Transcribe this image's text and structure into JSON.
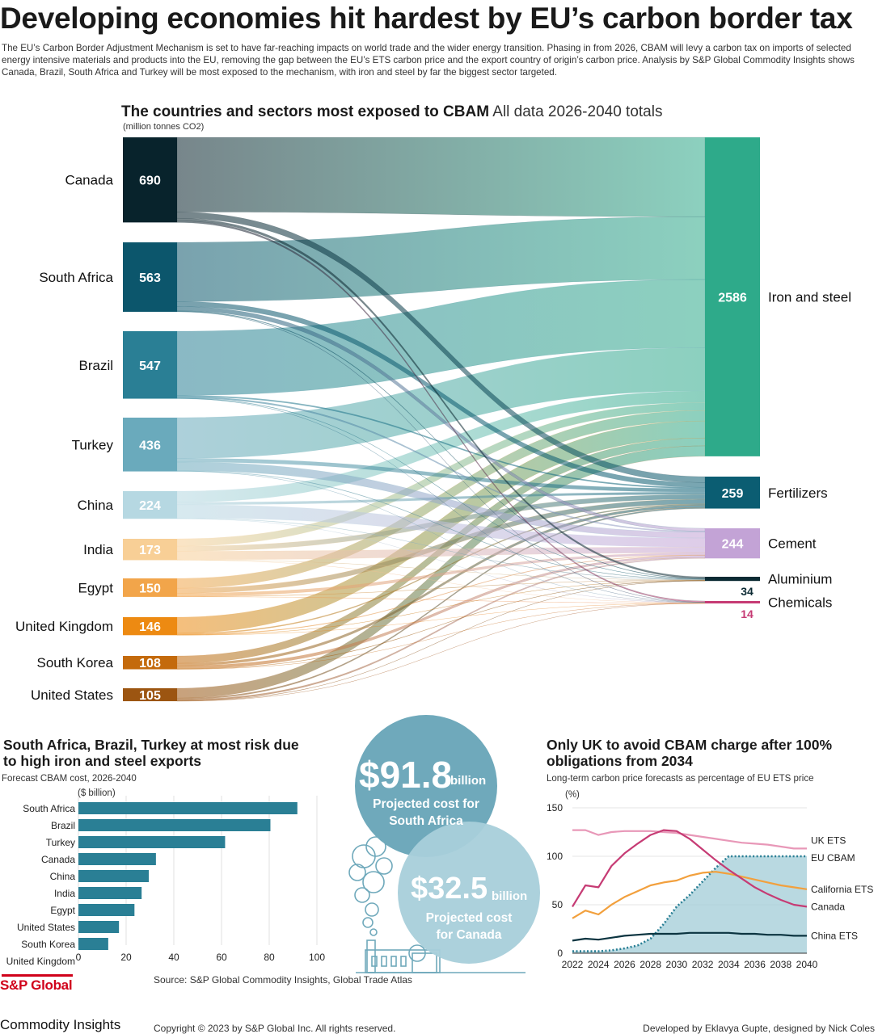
{
  "header": {
    "title": "Developing economies hit hardest by EU’s carbon border tax",
    "intro": "The EU’s Carbon Border Adjustment Mechanism is set to have far-reaching impacts on world trade and the wider energy transition. Phasing in from 2026, CBAM will levy a carbon tax on imports of selected energy intensive materials and products into the EU, removing the gap between the EU’s ETS carbon price and the export country of origin’s carbon price. Analysis by S&P Global Commodity Insights shows Canada, Brazil, South Africa and Turkey will be most exposed to the mechanism, with iron and steel by far the biggest sector targeted."
  },
  "sankey": {
    "title_bold": "The countries and sectors most exposed to CBAM",
    "title_rest": "All data 2026-2040 totals",
    "unit": "(million tonnes CO2)"
  },
  "costs": {
    "south_africa_value": "$91.8",
    "south_africa_suffix": "billion",
    "south_africa_label_1": "Projected cost for",
    "south_africa_label_2": "South Africa",
    "canada_value": "$32.5",
    "canada_suffix": "billion",
    "canada_label_1": "Projected cost",
    "canada_label_2": "for Canada"
  },
  "bar_section": {
    "title": "South Africa, Brazil, Turkey at most risk due to high iron and steel exports",
    "subtitle": "Forecast CBAM cost, 2026-2040",
    "unit": "($ billion)"
  },
  "line_section": {
    "title": "Only UK to avoid CBAM charge after 100% obligations from 2034",
    "subtitle": "Long-term carbon price forecasts as percentage of EU ETS price",
    "unit": "(%)"
  },
  "footer": {
    "source": "Source: S&P Global Commodity Insights, Global Trade Atlas",
    "copyright": "Copyright © 2023 by S&P Global Inc. All rights reserved.",
    "credit": "Developed by Eklavya Gupte,  designed by Nick Coles",
    "logo_line1": "S&P Global",
    "logo_line2": "Commodity Insights"
  },
  "colors": {
    "iron_and_steel": "#2eaa8a",
    "fertilizers": "#0b5d72",
    "cement": "#c3a3d6",
    "aluminium": "#0b2a33",
    "chemicals": "#c63b74",
    "bar": "#2a7f95",
    "bubble_large": "#6fa9bb",
    "bubble_small": "#a8cfda"
  },
  "chart_data": [
    {
      "type": "sankey",
      "title": "The countries and sectors most exposed to CBAM",
      "unit": "million tonnes CO2",
      "sources": [
        {
          "name": "Canada",
          "value": 690,
          "label": "690",
          "color": "#08232c"
        },
        {
          "name": "South Africa",
          "value": 563,
          "label": "563",
          "color": "#0c566c"
        },
        {
          "name": "Brazil",
          "value": 547,
          "label": "547",
          "color": "#2a7f95"
        },
        {
          "name": "Turkey",
          "value": 436,
          "label": "436",
          "color": "#6aaabc"
        },
        {
          "name": "China",
          "value": 224,
          "label": "224",
          "color": "#b6d8e2"
        },
        {
          "name": "India",
          "value": 173,
          "label": "173",
          "color": "#f8cf96"
        },
        {
          "name": "Egypt",
          "value": 150,
          "label": "150",
          "color": "#f2a54a"
        },
        {
          "name": "United Kingdom",
          "value": 146,
          "label": "146",
          "color": "#ed8a12"
        },
        {
          "name": "South Korea",
          "value": 108,
          "label": "108",
          "color": "#c46a0c"
        },
        {
          "name": "United States",
          "value": 105,
          "label": "105",
          "color": "#9c5511"
        }
      ],
      "targets": [
        {
          "name": "Iron and steel",
          "value": 2586,
          "label": "2586",
          "color": "#2eaa8a"
        },
        {
          "name": "Fertilizers",
          "value": 259,
          "label": "259",
          "color": "#0b5d72"
        },
        {
          "name": "Cement",
          "value": 244,
          "label": "244",
          "color": "#c3a3d6"
        },
        {
          "name": "Aluminium",
          "value": 34,
          "label": "34",
          "color": "#0b2a33"
        },
        {
          "name": "Chemicals",
          "value": 14,
          "label": "14",
          "color": "#c63b74"
        }
      ]
    },
    {
      "type": "bar",
      "title": "South Africa, Brazil, Turkey at most risk due to high iron and steel exports",
      "subtitle": "Forecast CBAM cost, 2026-2040",
      "ylabel": "($ billion)",
      "categories": [
        "South Africa",
        "Brazil",
        "Turkey",
        "Canada",
        "China",
        "India",
        "Egypt",
        "United States",
        "South Korea",
        "United Kingdom"
      ],
      "values": [
        91.8,
        80.5,
        61.5,
        32.5,
        29.5,
        26.5,
        23.5,
        17.0,
        12.5,
        0
      ],
      "xlim": [
        0,
        100
      ],
      "xticks": [
        "0",
        "20",
        "40",
        "60",
        "80",
        "100"
      ]
    },
    {
      "type": "line",
      "title": "Only UK to avoid CBAM charge after 100% obligations from 2034",
      "subtitle": "Long-term carbon price forecasts as percentage of EU ETS price",
      "ylabel": "(%)",
      "x": [
        2022,
        2023,
        2024,
        2025,
        2026,
        2027,
        2028,
        2029,
        2030,
        2031,
        2032,
        2033,
        2034,
        2035,
        2036,
        2037,
        2038,
        2039,
        2040
      ],
      "xlim": [
        2022,
        2040
      ],
      "ylim": [
        0,
        150
      ],
      "xticks": [
        "2022",
        "2024",
        "2026",
        "2028",
        "2030",
        "2032",
        "2034",
        "2036",
        "2038",
        "2040"
      ],
      "yticks": [
        "0",
        "50",
        "100",
        "150"
      ],
      "series": [
        {
          "name": "UK ETS",
          "label": "UK ETS",
          "color": "#e898b8",
          "style": "solid",
          "values": [
            127,
            127,
            122,
            125,
            126,
            126,
            126,
            125,
            124,
            122,
            120,
            118,
            116,
            114,
            113,
            112,
            110,
            108,
            108
          ]
        },
        {
          "name": "EU CBAM",
          "label": "EU CBAM",
          "color": "#2a7f95",
          "style": "dotted",
          "values": [
            2,
            2,
            2,
            3,
            5,
            8,
            15,
            30,
            48,
            60,
            74,
            88,
            100,
            100,
            100,
            100,
            100,
            100,
            100
          ]
        },
        {
          "name": "California ETS",
          "label": "California ETS",
          "color": "#f2a03d",
          "style": "solid",
          "values": [
            36,
            44,
            40,
            50,
            58,
            64,
            70,
            73,
            75,
            80,
            83,
            84,
            82,
            79,
            76,
            73,
            70,
            68,
            66
          ]
        },
        {
          "name": "Canada",
          "label": "Canada",
          "color": "#c63b74",
          "style": "solid",
          "values": [
            48,
            70,
            68,
            90,
            103,
            113,
            122,
            127,
            126,
            118,
            107,
            96,
            86,
            77,
            68,
            61,
            55,
            50,
            48
          ]
        },
        {
          "name": "China ETS",
          "label": "China ETS",
          "color": "#0b3440",
          "style": "solid",
          "values": [
            13,
            15,
            14,
            16,
            18,
            19,
            20,
            20,
            20,
            21,
            21,
            21,
            21,
            20,
            20,
            19,
            19,
            18,
            18
          ]
        }
      ]
    }
  ]
}
